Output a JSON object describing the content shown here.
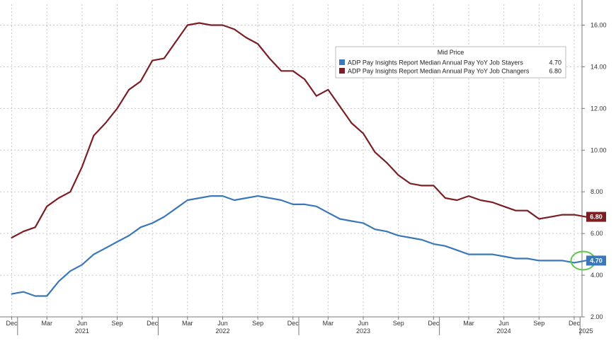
{
  "chart_data": {
    "type": "line",
    "title": "",
    "xlabel": "",
    "ylabel": "",
    "ylim": [
      2,
      17
    ],
    "y_ticks": [
      "2.00",
      "4.00",
      "6.00",
      "8.00",
      "10.00",
      "12.00",
      "14.00",
      "16.00"
    ],
    "y_axis_side": "right",
    "grid": true,
    "x_month_ticks": [
      "Dec",
      "Mar",
      "Jun",
      "Sep",
      "Dec",
      "Mar",
      "Jun",
      "Sep",
      "Dec",
      "Mar",
      "Jun",
      "Sep",
      "Dec",
      "Mar",
      "Jun",
      "Sep",
      "Dec"
    ],
    "x_year_labels": [
      "2021",
      "2022",
      "2023",
      "2024",
      "2025"
    ],
    "legend": {
      "title": "Mid Price",
      "placement": "top-right"
    },
    "series": [
      {
        "name": "ADP Pay Insights Report Median Annual Pay YoY Job Stayers",
        "last_value": "4.70",
        "color": "#3a78b8",
        "x": [
          "2020-12",
          "2021-01",
          "2021-02",
          "2021-03",
          "2021-04",
          "2021-05",
          "2021-06",
          "2021-07",
          "2021-08",
          "2021-09",
          "2021-10",
          "2021-11",
          "2021-12",
          "2022-01",
          "2022-02",
          "2022-03",
          "2022-04",
          "2022-05",
          "2022-06",
          "2022-07",
          "2022-08",
          "2022-09",
          "2022-10",
          "2022-11",
          "2022-12",
          "2023-01",
          "2023-02",
          "2023-03",
          "2023-04",
          "2023-05",
          "2023-06",
          "2023-07",
          "2023-08",
          "2023-09",
          "2023-10",
          "2023-11",
          "2023-12",
          "2024-01",
          "2024-02",
          "2024-03",
          "2024-04",
          "2024-05",
          "2024-06",
          "2024-07",
          "2024-08",
          "2024-09",
          "2024-10",
          "2024-11",
          "2024-12",
          "2025-01"
        ],
        "values": [
          3.1,
          3.2,
          3.0,
          3.0,
          3.7,
          4.2,
          4.5,
          5.0,
          5.3,
          5.6,
          5.9,
          6.3,
          6.5,
          6.8,
          7.2,
          7.6,
          7.7,
          7.8,
          7.8,
          7.6,
          7.7,
          7.8,
          7.7,
          7.6,
          7.4,
          7.4,
          7.3,
          7.0,
          6.7,
          6.6,
          6.5,
          6.2,
          6.1,
          5.9,
          5.8,
          5.7,
          5.5,
          5.4,
          5.2,
          5.0,
          5.0,
          5.0,
          4.9,
          4.8,
          4.8,
          4.7,
          4.7,
          4.7,
          4.6,
          4.7
        ]
      },
      {
        "name": "ADP Pay Insights Report Median Annual Pay YoY Job Changers",
        "last_value": "6.80",
        "color": "#7b1f24",
        "x": [
          "2020-12",
          "2021-01",
          "2021-02",
          "2021-03",
          "2021-04",
          "2021-05",
          "2021-06",
          "2021-07",
          "2021-08",
          "2021-09",
          "2021-10",
          "2021-11",
          "2021-12",
          "2022-01",
          "2022-02",
          "2022-03",
          "2022-04",
          "2022-05",
          "2022-06",
          "2022-07",
          "2022-08",
          "2022-09",
          "2022-10",
          "2022-11",
          "2022-12",
          "2023-01",
          "2023-02",
          "2023-03",
          "2023-04",
          "2023-05",
          "2023-06",
          "2023-07",
          "2023-08",
          "2023-09",
          "2023-10",
          "2023-11",
          "2023-12",
          "2024-01",
          "2024-02",
          "2024-03",
          "2024-04",
          "2024-05",
          "2024-06",
          "2024-07",
          "2024-08",
          "2024-09",
          "2024-10",
          "2024-11",
          "2024-12",
          "2025-01"
        ],
        "values": [
          5.8,
          6.1,
          6.3,
          7.3,
          7.7,
          8.0,
          9.2,
          10.7,
          11.3,
          12.0,
          12.9,
          13.3,
          14.3,
          14.4,
          15.2,
          16.0,
          16.1,
          16.0,
          16.0,
          15.8,
          15.4,
          15.1,
          14.4,
          13.8,
          13.8,
          13.4,
          12.6,
          12.9,
          12.1,
          11.3,
          10.8,
          9.9,
          9.4,
          8.8,
          8.4,
          8.3,
          8.3,
          7.7,
          7.6,
          7.8,
          7.6,
          7.5,
          7.3,
          7.1,
          7.1,
          6.7,
          6.8,
          6.9,
          6.9,
          6.8
        ]
      }
    ]
  }
}
